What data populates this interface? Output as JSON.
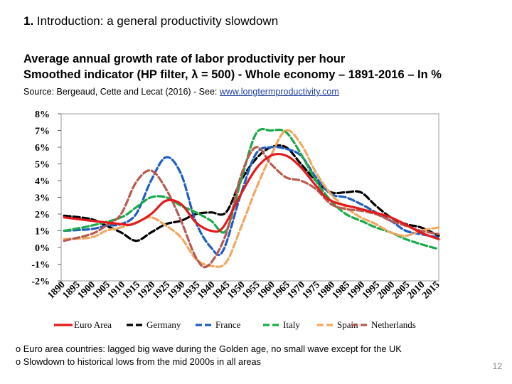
{
  "slide": {
    "number_part": "1.",
    "title_rest": " Introduction: a general productivity slowdown",
    "subtitle_line1": "Average annual growth rate of labor productivity per hour",
    "subtitle_line2": "Smoothed indicator (HP filter, λ = 500) - Whole economy – 1891-2016 – In %",
    "source_prefix": "Source: Bergeaud, Cette and Lecat (2016)  - See: ",
    "source_link": "www.longtermproductivity.com",
    "bullets": [
      "Euro area countries: lagged big wave during the Golden age, no small wave except for the UK",
      "Slowdown to historical lows from the mid 2000s in all areas"
    ],
    "bullet_marker": "o",
    "page_number": "12"
  },
  "chart_data": {
    "type": "line",
    "title": "Average annual growth rate of labor productivity per hour",
    "xlabel": "",
    "ylabel": "",
    "x_ticks": [
      "1890",
      "1895",
      "1900",
      "1905",
      "1910",
      "1915",
      "1920",
      "1925",
      "1930",
      "1935",
      "1940",
      "1945",
      "1950",
      "1955",
      "1960",
      "1965",
      "1970",
      "1975",
      "1980",
      "1985",
      "1990",
      "1995",
      "2000",
      "2005",
      "2010",
      "2015"
    ],
    "y_ticks": [
      "8%",
      "7%",
      "6%",
      "5%",
      "4%",
      "3%",
      "2%",
      "1%",
      "0%",
      "-1%",
      "-2%"
    ],
    "xlim": [
      1890,
      2016
    ],
    "ylim": [
      -2,
      8
    ],
    "legend_position": "bottom",
    "series": [
      {
        "name": "Euro Area",
        "color": "#e31a1c",
        "dash": "solid",
        "x": [
          1891,
          1900,
          1910,
          1914,
          1920,
          1925,
          1930,
          1935,
          1940,
          1944,
          1950,
          1955,
          1960,
          1965,
          1970,
          1975,
          1980,
          1990,
          2000,
          2010,
          2016
        ],
        "y": [
          1.8,
          1.6,
          1.4,
          1.4,
          2.0,
          2.8,
          2.6,
          1.5,
          1.0,
          1.2,
          3.2,
          4.7,
          5.5,
          5.5,
          4.8,
          3.7,
          2.8,
          2.3,
          1.8,
          0.9,
          0.5
        ]
      },
      {
        "name": "Germany",
        "color": "#000000",
        "dash": "long",
        "x": [
          1891,
          1900,
          1905,
          1910,
          1915,
          1920,
          1925,
          1930,
          1935,
          1940,
          1945,
          1950,
          1955,
          1960,
          1965,
          1970,
          1975,
          1980,
          1985,
          1990,
          1995,
          2000,
          2005,
          2010,
          2016
        ],
        "y": [
          1.9,
          1.7,
          1.3,
          0.9,
          0.4,
          0.9,
          1.4,
          1.6,
          2.0,
          2.1,
          2.1,
          4.0,
          5.3,
          6.0,
          6.0,
          5.0,
          4.0,
          3.3,
          3.3,
          3.3,
          2.5,
          1.8,
          1.4,
          1.2,
          0.7
        ]
      },
      {
        "name": "France",
        "color": "#1f5fbf",
        "dash": "long",
        "x": [
          1891,
          1900,
          1905,
          1910,
          1915,
          1920,
          1925,
          1930,
          1935,
          1940,
          1944,
          1950,
          1955,
          1960,
          1965,
          1970,
          1975,
          1980,
          1985,
          1990,
          1995,
          2000,
          2005,
          2010,
          2016
        ],
        "y": [
          1.0,
          1.1,
          1.3,
          1.4,
          2.0,
          4.0,
          5.4,
          4.4,
          1.5,
          0.0,
          -0.2,
          3.2,
          5.6,
          6.0,
          5.9,
          5.5,
          4.2,
          3.2,
          3.0,
          2.6,
          2.1,
          1.6,
          1.0,
          0.8,
          0.6
        ]
      },
      {
        "name": "Italy",
        "color": "#1aaa4a",
        "dash": "long",
        "x": [
          1891,
          1900,
          1910,
          1915,
          1920,
          1925,
          1930,
          1935,
          1940,
          1945,
          1950,
          1955,
          1960,
          1965,
          1970,
          1975,
          1980,
          1985,
          1990,
          1995,
          2000,
          2005,
          2010,
          2016
        ],
        "y": [
          1.0,
          1.3,
          1.8,
          2.4,
          3.0,
          3.0,
          2.5,
          2.1,
          1.6,
          1.0,
          4.0,
          6.8,
          7.0,
          6.9,
          5.6,
          4.0,
          2.8,
          2.0,
          1.6,
          1.2,
          0.9,
          0.5,
          0.2,
          -0.1
        ]
      },
      {
        "name": "Spain",
        "color": "#f0a860",
        "dash": "long",
        "x": [
          1891,
          1900,
          1905,
          1910,
          1915,
          1920,
          1925,
          1930,
          1935,
          1940,
          1945,
          1950,
          1955,
          1960,
          1965,
          1970,
          1975,
          1980,
          1985,
          1990,
          1995,
          2000,
          2005,
          2010,
          2016
        ],
        "y": [
          0.5,
          0.6,
          1.0,
          1.2,
          1.5,
          1.8,
          1.3,
          0.6,
          -0.7,
          -1.1,
          -0.9,
          1.2,
          3.5,
          5.5,
          7.0,
          6.2,
          4.5,
          3.2,
          2.4,
          1.8,
          1.4,
          0.9,
          0.7,
          1.0,
          1.2
        ]
      },
      {
        "name": "Netherlands",
        "color": "#b85a50",
        "dash": "long",
        "x": [
          1891,
          1900,
          1905,
          1910,
          1915,
          1920,
          1925,
          1930,
          1935,
          1939,
          1945,
          1950,
          1955,
          1960,
          1965,
          1970,
          1975,
          1980,
          1985,
          1990,
          1995,
          2000,
          2005,
          2010,
          2016
        ],
        "y": [
          0.4,
          0.8,
          1.3,
          2.0,
          3.9,
          4.6,
          3.5,
          1.6,
          -0.6,
          -1.1,
          0.8,
          4.3,
          6.0,
          5.0,
          4.2,
          4.0,
          3.5,
          2.6,
          2.3,
          2.2,
          2.0,
          1.6,
          1.3,
          1.0,
          0.8
        ]
      }
    ]
  }
}
